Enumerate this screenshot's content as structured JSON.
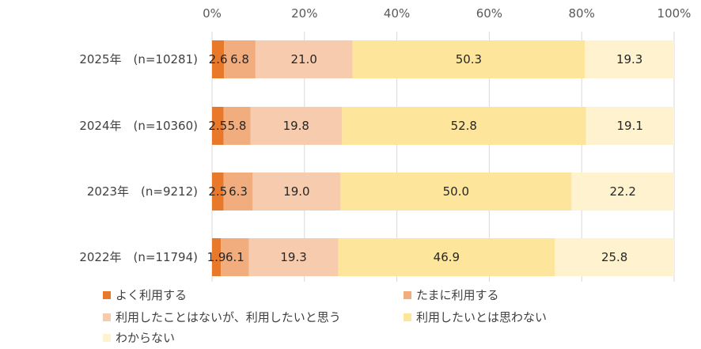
{
  "chart_data": {
    "type": "bar",
    "orientation": "horizontal",
    "stacked": "percent",
    "categories": [
      "2025年　(n=10281)",
      "2024年　(n=10360)",
      "2023年　(n=9212)",
      "2022年　(n=11794)"
    ],
    "series": [
      {
        "name": "よく利用する",
        "color": "#E8782A",
        "values": [
          2.6,
          2.5,
          2.5,
          1.9
        ]
      },
      {
        "name": "たまに利用する",
        "color": "#F2AD7F",
        "values": [
          6.8,
          5.8,
          6.3,
          6.1
        ]
      },
      {
        "name": "利用したことはないが、利用したいと思う",
        "color": "#F6CBAE",
        "values": [
          21.0,
          19.8,
          19.0,
          19.3
        ]
      },
      {
        "name": "利用したいとは思わない",
        "color": "#FDE59C",
        "values": [
          50.3,
          52.8,
          50.0,
          46.9
        ]
      },
      {
        "name": "わからない",
        "color": "#FEF2CF",
        "values": [
          19.3,
          19.1,
          22.2,
          25.8
        ]
      }
    ],
    "value_labels": [
      [
        "2.6",
        "6.8",
        "21.0",
        "50.3",
        "19.3"
      ],
      [
        "2.5",
        "5.8",
        "19.8",
        "52.8",
        "19.1"
      ],
      [
        "2.5",
        "6.3",
        "19.0",
        "50.0",
        "22.2"
      ],
      [
        "1.9",
        "6.1",
        "19.3",
        "46.9",
        "25.8"
      ]
    ],
    "x_ticks": [
      "0%",
      "20%",
      "40%",
      "60%",
      "80%",
      "100%"
    ],
    "xlim": [
      0,
      100
    ],
    "grid": true,
    "legend_position": "bottom"
  }
}
